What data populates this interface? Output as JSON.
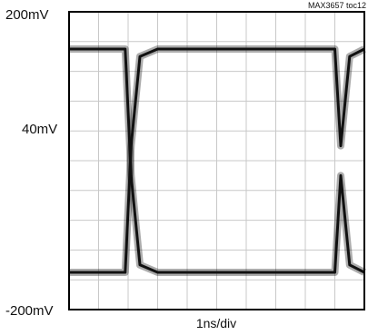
{
  "chart_data": {
    "type": "line",
    "title": "",
    "figure_id": "MAX3657 toc12",
    "xlabel": "1ns/div",
    "ylabel": "",
    "y_tick_labels": [
      "200mV",
      "40mV",
      "-200mV"
    ],
    "grid": true,
    "grid_divisions": {
      "x": 10,
      "y": 10
    },
    "xlim": [
      0,
      10
    ],
    "ylim": [
      -200,
      200
    ],
    "series": [
      {
        "x": [
          0,
          1.9,
          2.1,
          2.4,
          3.0,
          9.0,
          9.2,
          9.5,
          10.0
        ],
        "values": [
          150,
          150,
          -20,
          -140,
          -150,
          -150,
          -20,
          -140,
          -150
        ]
      },
      {
        "x": [
          0,
          1.9,
          2.1,
          2.4,
          3.0,
          9.0,
          9.2,
          9.5,
          10.0
        ],
        "values": [
          -150,
          -150,
          20,
          140,
          150,
          150,
          20,
          140,
          150
        ]
      }
    ],
    "colors": {
      "trace": "#111111",
      "grid": "#c8c8c8",
      "frame": "#000000"
    }
  }
}
